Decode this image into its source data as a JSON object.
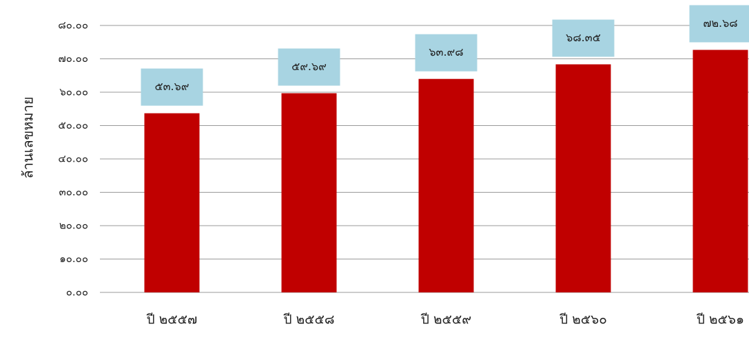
{
  "chart_data": {
    "type": "bar",
    "y_label": "ล้านเลขหมาย",
    "categories": [
      "ปี ๒๕๕๗",
      "ปี ๒๕๕๘",
      "ปี ๒๕๕๙",
      "ปี ๒๕๖๐",
      "ปี ๒๕๖๑"
    ],
    "values": [
      53.69,
      59.69,
      63.98,
      68.35,
      72.68
    ],
    "value_labels": [
      "๕๓.๖๙",
      "๕๙.๖๙",
      "๖๓.๙๘",
      "๖๘.๓๕",
      "๗๒.๖๘"
    ],
    "color": "#c00000",
    "label_box_color": "#a8d4e2",
    "ylim": [
      0,
      80
    ],
    "yticks": [
      {
        "value": 0,
        "label": "๐.๐๐"
      },
      {
        "value": 10,
        "label": "๑๐.๐๐"
      },
      {
        "value": 20,
        "label": "๒๐.๐๐"
      },
      {
        "value": 30,
        "label": "๓๐.๐๐"
      },
      {
        "value": 40,
        "label": "๔๐.๐๐"
      },
      {
        "value": 50,
        "label": "๕๐.๐๐"
      },
      {
        "value": 60,
        "label": "๖๐.๐๐"
      },
      {
        "value": 70,
        "label": "๗๐.๐๐"
      },
      {
        "value": 80,
        "label": "๘๐.๐๐"
      }
    ],
    "grid": true
  }
}
